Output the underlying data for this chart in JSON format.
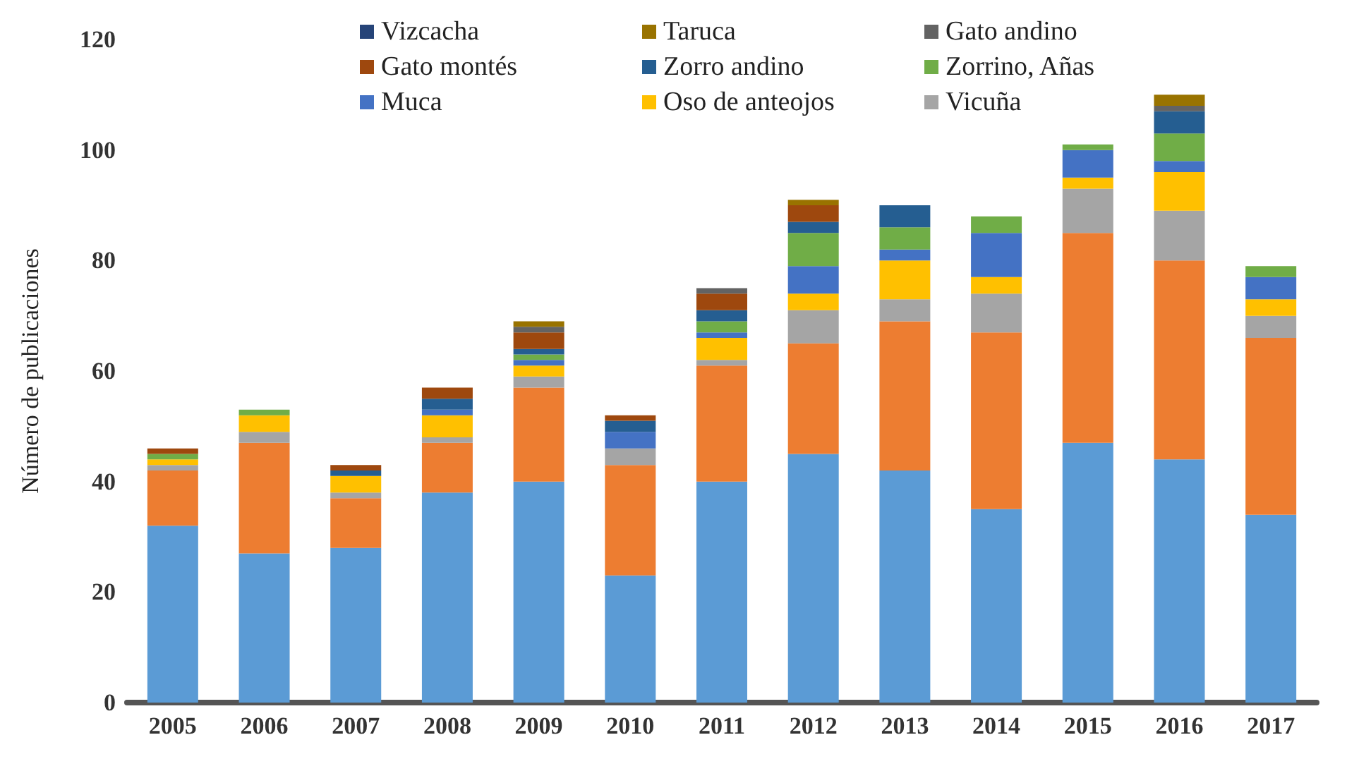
{
  "chart_data": {
    "type": "bar",
    "stacked": true,
    "ylabel": "Número de publicaciones",
    "categories": [
      "2005",
      "2006",
      "2007",
      "2008",
      "2009",
      "2010",
      "2011",
      "2012",
      "2013",
      "2014",
      "2015",
      "2016",
      "2017"
    ],
    "ylim": [
      0,
      120
    ],
    "yticks": [
      0,
      20,
      40,
      60,
      80,
      100,
      120
    ],
    "grid": false,
    "legend": "top",
    "series": [
      {
        "color": "#5b9bd5",
        "values": [
          32,
          27,
          28,
          38,
          40,
          23,
          40,
          45,
          42,
          35,
          47,
          44,
          34
        ]
      },
      {
        "color": "#ed7d31",
        "values": [
          10,
          20,
          9,
          9,
          17,
          20,
          21,
          20,
          27,
          32,
          38,
          36,
          32
        ]
      },
      {
        "name": "Vicuña",
        "color": "#a5a5a5",
        "values": [
          1,
          2,
          1,
          1,
          2,
          3,
          1,
          6,
          4,
          7,
          8,
          9,
          4
        ]
      },
      {
        "name": "Oso de anteojos",
        "color": "#ffc000",
        "values": [
          1,
          3,
          3,
          4,
          2,
          0,
          4,
          3,
          7,
          3,
          2,
          7,
          3
        ]
      },
      {
        "name": "Muca",
        "color": "#4472c4",
        "values": [
          0,
          0,
          0,
          1,
          1,
          3,
          1,
          5,
          2,
          8,
          5,
          2,
          4
        ]
      },
      {
        "name": "Zorrino, Añas",
        "color": "#70ad47",
        "values": [
          1,
          1,
          0,
          0,
          1,
          0,
          2,
          6,
          4,
          3,
          1,
          5,
          2
        ]
      },
      {
        "name": "Zorro andino",
        "color": "#255e91",
        "values": [
          0,
          0,
          1,
          2,
          1,
          2,
          2,
          2,
          4,
          0,
          0,
          4,
          0
        ]
      },
      {
        "name": "Gato montés",
        "color": "#9e480e",
        "values": [
          1,
          0,
          1,
          2,
          3,
          1,
          3,
          3,
          0,
          0,
          0,
          0,
          0
        ]
      },
      {
        "name": "Gato andino",
        "color": "#636363",
        "values": [
          0,
          0,
          0,
          0,
          1,
          0,
          1,
          0,
          0,
          0,
          0,
          1,
          0
        ]
      },
      {
        "name": "Taruca",
        "color": "#997300",
        "values": [
          0,
          0,
          0,
          0,
          1,
          0,
          0,
          1,
          0,
          0,
          0,
          2,
          0
        ]
      },
      {
        "name": "Vizcacha",
        "color": "#264478",
        "values": [
          0,
          0,
          0,
          0,
          0,
          0,
          0,
          0,
          0,
          0,
          0,
          0,
          0
        ]
      }
    ]
  }
}
